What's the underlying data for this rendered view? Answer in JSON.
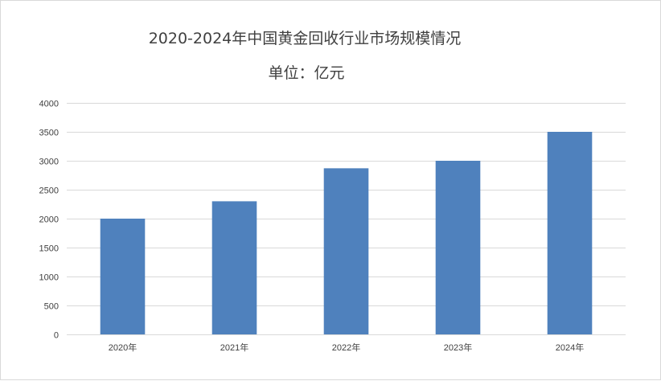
{
  "chart_data": {
    "type": "bar",
    "title": "2020-2024年中国黄金回收行业市场规模情况",
    "subtitle": "单位：亿元",
    "categories": [
      "2020年",
      "2021年",
      "2022年",
      "2023年",
      "2024年"
    ],
    "values": [
      2000,
      2300,
      2870,
      3000,
      3500
    ],
    "ylim": [
      0,
      4000
    ],
    "yticks": [
      0,
      500,
      1000,
      1500,
      2000,
      2500,
      3000,
      3500,
      4000
    ],
    "grid": true,
    "legend": "none",
    "bar_color": "#4f81bd",
    "grid_color": "#d9d9d9"
  }
}
